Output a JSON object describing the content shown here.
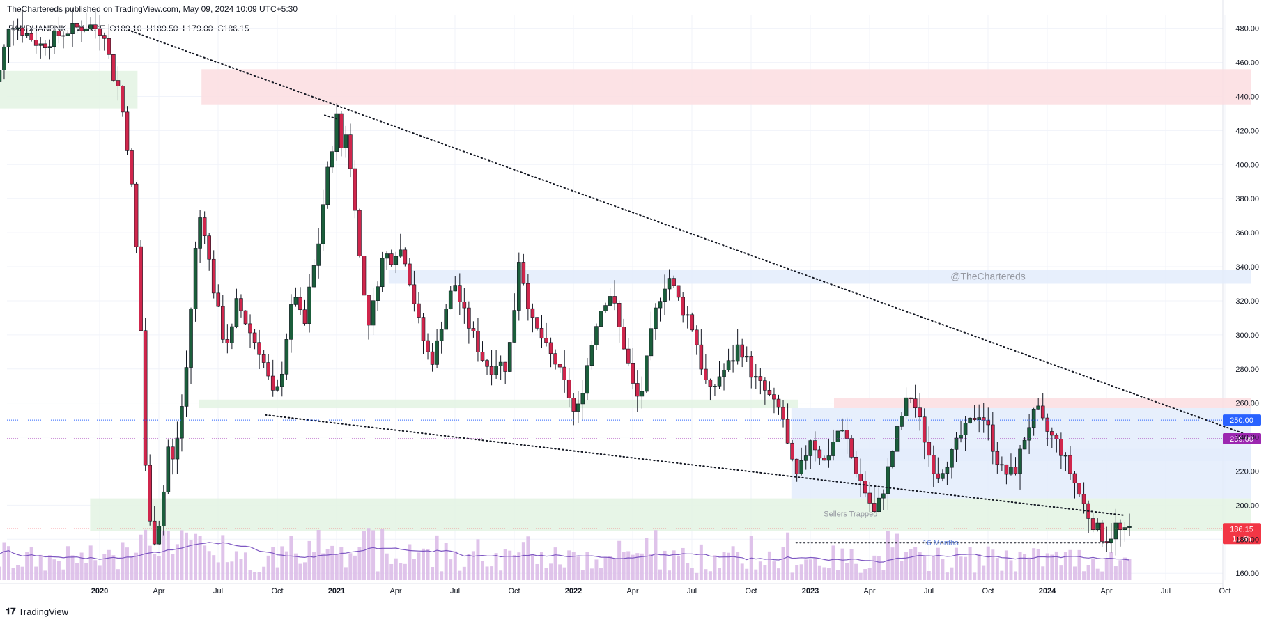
{
  "header": {
    "published": "TheChartereds published on TradingView.com, May 09, 2024 10:09 UTC+5:30",
    "symbol_line": "BANDHANBNK, 1W, NSE  O189.10  H189.50  L179.00  C186.15"
  },
  "footer": {
    "brand": "TradingView",
    "logo": "tradingview-logo-icon"
  },
  "colors": {
    "up": "#1b5e3b",
    "down": "#c2185b",
    "down_fill": "#d0264c",
    "volume": "#d9b8e6",
    "ma": "#7e57c2",
    "zone_red": "#fcdde0",
    "zone_green": "#e3f3e3",
    "zone_blue": "#e3ecfb",
    "badge_250": "#2962ff",
    "badge_239": "#9c27b0",
    "badge_price": "#f23645"
  },
  "chart_data": {
    "type": "candlestick",
    "title": "",
    "symbol": "BANDHANBNK",
    "interval": "1W",
    "exchange": "NSE",
    "ohlc_last": {
      "open": 189.1,
      "high": 189.5,
      "low": 179.0,
      "close": 186.15
    },
    "y_axis": {
      "ticks": [
        "480.00",
        "460.00",
        "440.00",
        "420.00",
        "400.00",
        "380.00",
        "360.00",
        "340.00",
        "320.00",
        "300.00",
        "280.00",
        "260.00",
        "240.00",
        "220.00",
        "200.00",
        "180.00",
        "160.00"
      ],
      "range": [
        156,
        486
      ]
    },
    "x_axis": {
      "ticks": [
        {
          "label": "2020",
          "bold": true,
          "t": 0.0
        },
        {
          "label": "Apr",
          "bold": false,
          "t": 0.25
        },
        {
          "label": "Jul",
          "bold": false,
          "t": 0.5
        },
        {
          "label": "Oct",
          "bold": false,
          "t": 0.75
        },
        {
          "label": "2021",
          "bold": true,
          "t": 1.0
        },
        {
          "label": "Apr",
          "bold": false,
          "t": 1.25
        },
        {
          "label": "Jul",
          "bold": false,
          "t": 1.5
        },
        {
          "label": "Oct",
          "bold": false,
          "t": 1.75
        },
        {
          "label": "2022",
          "bold": true,
          "t": 2.0
        },
        {
          "label": "Apr",
          "bold": false,
          "t": 2.25
        },
        {
          "label": "Jul",
          "bold": false,
          "t": 2.5
        },
        {
          "label": "Oct",
          "bold": false,
          "t": 2.75
        },
        {
          "label": "2023",
          "bold": true,
          "t": 3.0
        },
        {
          "label": "Apr",
          "bold": false,
          "t": 3.25
        },
        {
          "label": "Jul",
          "bold": false,
          "t": 3.5
        },
        {
          "label": "Oct",
          "bold": false,
          "t": 3.75
        },
        {
          "label": "2024",
          "bold": true,
          "t": 4.0
        },
        {
          "label": "Apr",
          "bold": false,
          "t": 4.25
        },
        {
          "label": "Jul",
          "bold": false,
          "t": 4.5
        },
        {
          "label": "Oct",
          "bold": false,
          "t": 4.75
        }
      ]
    },
    "price_path": [
      [
        -0.48,
        470
      ],
      [
        -0.45,
        445
      ],
      [
        -0.42,
        455
      ],
      [
        -0.38,
        485
      ],
      [
        -0.32,
        478
      ],
      [
        -0.25,
        470
      ],
      [
        -0.15,
        478
      ],
      [
        -0.05,
        482
      ],
      [
        0.02,
        478
      ],
      [
        0.05,
        455
      ],
      [
        0.08,
        445
      ],
      [
        0.11,
        420
      ],
      [
        0.14,
        380
      ],
      [
        0.17,
        320
      ],
      [
        0.19,
        230
      ],
      [
        0.21,
        190
      ],
      [
        0.23,
        180
      ],
      [
        0.26,
        195
      ],
      [
        0.29,
        235
      ],
      [
        0.31,
        225
      ],
      [
        0.34,
        250
      ],
      [
        0.37,
        285
      ],
      [
        0.4,
        345
      ],
      [
        0.43,
        375
      ],
      [
        0.46,
        345
      ],
      [
        0.49,
        320
      ],
      [
        0.52,
        300
      ],
      [
        0.55,
        295
      ],
      [
        0.58,
        320
      ],
      [
        0.61,
        310
      ],
      [
        0.64,
        300
      ],
      [
        0.68,
        290
      ],
      [
        0.71,
        275
      ],
      [
        0.74,
        260
      ],
      [
        0.77,
        280
      ],
      [
        0.8,
        310
      ],
      [
        0.83,
        325
      ],
      [
        0.86,
        300
      ],
      [
        0.89,
        330
      ],
      [
        0.92,
        350
      ],
      [
        0.95,
        385
      ],
      [
        0.98,
        410
      ],
      [
        1.0,
        428
      ],
      [
        1.02,
        410
      ],
      [
        1.04,
        420
      ],
      [
        1.06,
        395
      ],
      [
        1.08,
        375
      ],
      [
        1.1,
        340
      ],
      [
        1.12,
        320
      ],
      [
        1.14,
        305
      ],
      [
        1.17,
        330
      ],
      [
        1.2,
        348
      ],
      [
        1.23,
        345
      ],
      [
        1.26,
        352
      ],
      [
        1.29,
        345
      ],
      [
        1.32,
        325
      ],
      [
        1.35,
        305
      ],
      [
        1.38,
        290
      ],
      [
        1.41,
        285
      ],
      [
        1.44,
        305
      ],
      [
        1.47,
        320
      ],
      [
        1.5,
        330
      ],
      [
        1.53,
        315
      ],
      [
        1.56,
        305
      ],
      [
        1.59,
        295
      ],
      [
        1.62,
        285
      ],
      [
        1.65,
        280
      ],
      [
        1.68,
        285
      ],
      [
        1.71,
        280
      ],
      [
        1.74,
        300
      ],
      [
        1.77,
        345
      ],
      [
        1.8,
        325
      ],
      [
        1.83,
        305
      ],
      [
        1.86,
        300
      ],
      [
        1.89,
        290
      ],
      [
        1.92,
        285
      ],
      [
        1.95,
        275
      ],
      [
        1.98,
        265
      ],
      [
        2.01,
        250
      ],
      [
        2.04,
        270
      ],
      [
        2.07,
        290
      ],
      [
        2.1,
        310
      ],
      [
        2.13,
        320
      ],
      [
        2.16,
        325
      ],
      [
        2.19,
        305
      ],
      [
        2.22,
        290
      ],
      [
        2.25,
        270
      ],
      [
        2.28,
        260
      ],
      [
        2.31,
        285
      ],
      [
        2.34,
        310
      ],
      [
        2.37,
        325
      ],
      [
        2.4,
        335
      ],
      [
        2.43,
        325
      ],
      [
        2.46,
        315
      ],
      [
        2.49,
        310
      ],
      [
        2.52,
        295
      ],
      [
        2.55,
        275
      ],
      [
        2.58,
        265
      ],
      [
        2.61,
        275
      ],
      [
        2.64,
        280
      ],
      [
        2.67,
        285
      ],
      [
        2.7,
        295
      ],
      [
        2.73,
        285
      ],
      [
        2.76,
        275
      ],
      [
        2.79,
        270
      ],
      [
        2.82,
        265
      ],
      [
        2.85,
        258
      ],
      [
        2.88,
        255
      ],
      [
        2.91,
        230
      ],
      [
        2.94,
        215
      ],
      [
        2.97,
        225
      ],
      [
        3.0,
        240
      ],
      [
        3.03,
        232
      ],
      [
        3.06,
        225
      ],
      [
        3.09,
        235
      ],
      [
        3.12,
        245
      ],
      [
        3.15,
        240
      ],
      [
        3.18,
        225
      ],
      [
        3.21,
        215
      ],
      [
        3.24,
        205
      ],
      [
        3.27,
        195
      ],
      [
        3.3,
        205
      ],
      [
        3.33,
        222
      ],
      [
        3.36,
        240
      ],
      [
        3.39,
        255
      ],
      [
        3.42,
        265
      ],
      [
        3.45,
        255
      ],
      [
        3.48,
        240
      ],
      [
        3.51,
        225
      ],
      [
        3.54,
        218
      ],
      [
        3.57,
        225
      ],
      [
        3.6,
        230
      ],
      [
        3.63,
        240
      ],
      [
        3.66,
        245
      ],
      [
        3.69,
        252
      ],
      [
        3.72,
        255
      ],
      [
        3.75,
        245
      ],
      [
        3.78,
        230
      ],
      [
        3.81,
        220
      ],
      [
        3.84,
        218
      ],
      [
        3.87,
        222
      ],
      [
        3.9,
        238
      ],
      [
        3.93,
        250
      ],
      [
        3.96,
        255
      ],
      [
        3.99,
        245
      ],
      [
        4.02,
        240
      ],
      [
        4.05,
        235
      ],
      [
        4.08,
        225
      ],
      [
        4.11,
        215
      ],
      [
        4.14,
        205
      ],
      [
        4.17,
        195
      ],
      [
        4.2,
        188
      ],
      [
        4.23,
        182
      ],
      [
        4.26,
        180
      ],
      [
        4.29,
        188
      ],
      [
        4.32,
        182
      ],
      [
        4.35,
        186.15
      ]
    ],
    "volume_ma_note": "purple moving average over volume bars",
    "zones": [
      {
        "type": "red",
        "from_t": 0.43,
        "to_t": 4.86,
        "top": 456,
        "bottom": 435
      },
      {
        "type": "green",
        "from_t": -0.48,
        "to_t": 0.16,
        "top": 455,
        "bottom": 433
      },
      {
        "type": "blue",
        "from_t": 1.22,
        "to_t": 4.86,
        "top": 338,
        "bottom": 330
      },
      {
        "type": "green",
        "from_t": 0.42,
        "to_t": 2.95,
        "top": 262,
        "bottom": 257
      },
      {
        "type": "red",
        "from_t": 3.1,
        "to_t": 4.86,
        "top": 263,
        "bottom": 257
      },
      {
        "type": "blue",
        "from_t": 2.92,
        "to_t": 4.86,
        "top": 257,
        "bottom": 204
      },
      {
        "type": "blue",
        "from_t": 2.92,
        "to_t": 4.86,
        "top": 233,
        "bottom": 226
      },
      {
        "type": "green",
        "from_t": -0.04,
        "to_t": 4.86,
        "top": 204,
        "bottom": 185
      }
    ],
    "trendlines": [
      {
        "from": [
          0.12,
          479
        ],
        "to": [
          4.87,
          240
        ]
      },
      {
        "from": [
          0.95,
          429
        ],
        "to": [
          1.0,
          427
        ]
      },
      {
        "from": [
          0.7,
          253
        ],
        "to": [
          4.33,
          194
        ]
      },
      {
        "from": [
          2.94,
          178
        ],
        "to": [
          4.28,
          178
        ]
      }
    ],
    "horizontal_levels": [
      {
        "value": 250.0,
        "label": "250.00",
        "color": "#2962ff"
      },
      {
        "value": 239.0,
        "label": "239.00",
        "color": "#9c27b0"
      },
      {
        "value": 186.15,
        "label": "186.15",
        "color": "#f23645",
        "sublabel": "1d 6h"
      }
    ],
    "annotations": [
      {
        "text": "@TheChartereds",
        "t": 3.75,
        "y": 334
      },
      {
        "text": "Sellers Trapped",
        "t": 3.17,
        "y": 195
      },
      {
        "text": "16 Months",
        "t": 3.55,
        "y": 178
      }
    ]
  }
}
